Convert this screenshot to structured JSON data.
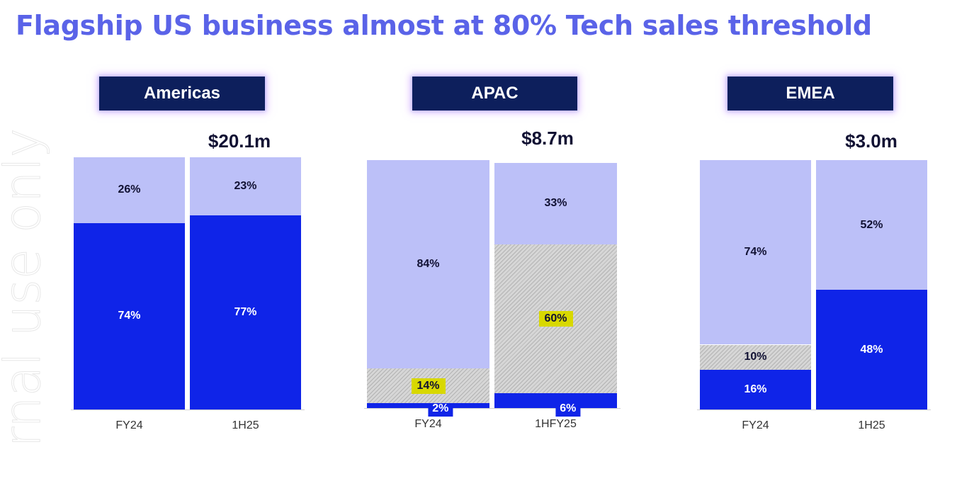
{
  "title": "Flagship US business almost at 80% Tech sales threshold",
  "watermark": "rnal use only",
  "colors": {
    "dark_blue": "#0f24e8",
    "light_blue": "#bcc0f8",
    "grey_hatch": "#d6d6d6",
    "highlight": "#d8d800",
    "header_bg": "#0d1f5c",
    "title": "#5a63e8"
  },
  "chart_data": [
    {
      "type": "bar",
      "stacked": true,
      "region": "Americas",
      "total": "$20.1m",
      "categories": [
        "FY24",
        "1H25"
      ],
      "series": [
        {
          "color": "dark_blue",
          "values": [
            74,
            77
          ],
          "labels": [
            "74%",
            "77%"
          ]
        },
        {
          "color": "light_blue",
          "values": [
            26,
            23
          ],
          "labels": [
            "26%",
            "23%"
          ]
        }
      ],
      "ylim": [
        0,
        100
      ]
    },
    {
      "type": "bar",
      "stacked": true,
      "region": "APAC",
      "total": "$8.7m",
      "categories": [
        "FY24",
        "1HFY25"
      ],
      "series": [
        {
          "color": "dark_blue",
          "values": [
            2,
            6
          ],
          "labels": [
            "2%",
            "6%"
          ]
        },
        {
          "color": "grey_hatch",
          "values": [
            14,
            60
          ],
          "labels": [
            "14%",
            "60%"
          ]
        },
        {
          "color": "light_blue",
          "values": [
            84,
            33
          ],
          "labels": [
            "84%",
            "33%"
          ]
        }
      ],
      "ylim": [
        0,
        100
      ]
    },
    {
      "type": "bar",
      "stacked": true,
      "region": "EMEA",
      "total": "$3.0m",
      "categories": [
        "FY24",
        "1H25"
      ],
      "series": [
        {
          "color": "dark_blue",
          "values": [
            16,
            48
          ],
          "labels": [
            "16%",
            "48%"
          ]
        },
        {
          "color": "grey_hatch",
          "values": [
            10,
            0
          ],
          "labels": [
            "10%",
            ""
          ]
        },
        {
          "color": "light_blue",
          "values": [
            74,
            52
          ],
          "labels": [
            "74%",
            "52%"
          ]
        }
      ],
      "ylim": [
        0,
        100
      ]
    }
  ]
}
